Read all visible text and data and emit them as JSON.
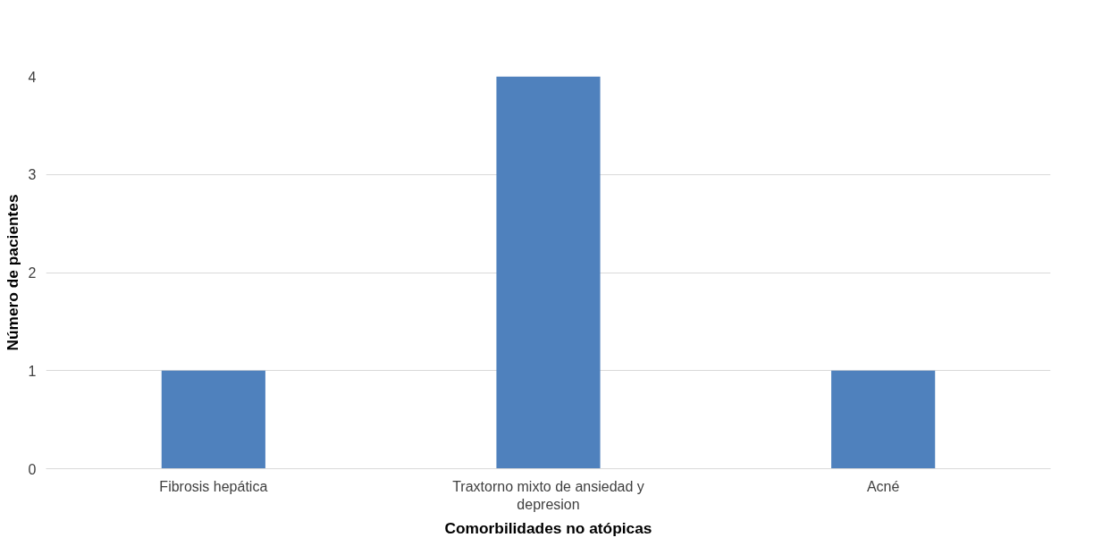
{
  "chart_data": {
    "type": "bar",
    "xlabel": "Comorbilidades no atópicas",
    "ylabel": "Número de pacientes",
    "categories": [
      "Fibrosis hepática",
      "Traxtorno mixto de ansiedad y depresion",
      "Acné"
    ],
    "values": [
      1,
      4,
      1
    ],
    "color": "#4f81bd",
    "ylim": [
      0,
      4
    ],
    "yticks": [
      0,
      1,
      2,
      3,
      4
    ],
    "grid": "y"
  }
}
